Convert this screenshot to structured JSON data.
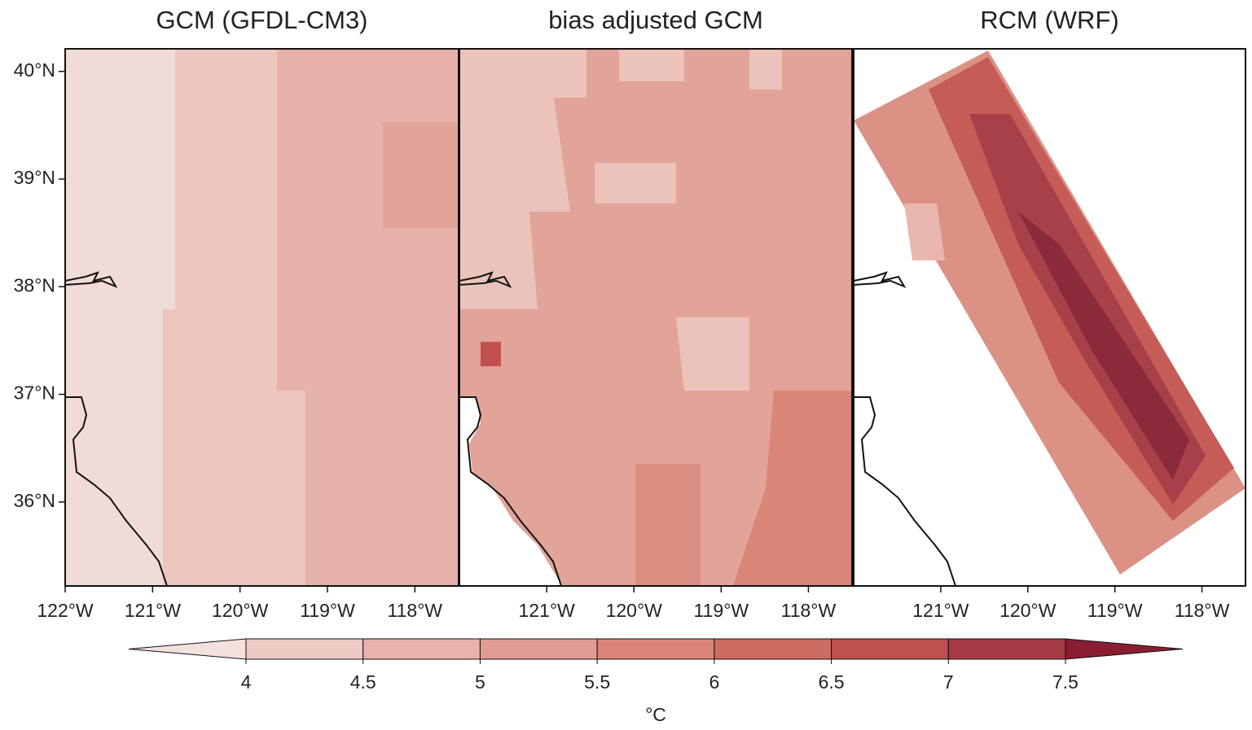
{
  "panels": [
    {
      "title": "GCM (GFDL-CM3)",
      "xlim": [
        -122.0,
        -117.5
      ],
      "ylim": [
        35.22,
        40.21
      ],
      "xticks": [
        {
          "value": -122,
          "label": "122°W"
        },
        {
          "value": -121,
          "label": "121°W"
        },
        {
          "value": -120,
          "label": "120°W"
        },
        {
          "value": -119,
          "label": "119°W"
        },
        {
          "value": -118,
          "label": "118°W"
        }
      ],
      "yticks": [
        {
          "value": 36,
          "label": "36°N"
        },
        {
          "value": 37,
          "label": "37°N"
        },
        {
          "value": 38,
          "label": "38°N"
        },
        {
          "value": 39,
          "label": "39°N"
        },
        {
          "value": 40,
          "label": "40°N"
        }
      ]
    },
    {
      "title": "bias adjusted GCM",
      "xlim": [
        -122.0,
        -117.5
      ],
      "ylim": [
        35.22,
        40.21
      ],
      "xticks": [
        {
          "value": -121,
          "label": "121°W"
        },
        {
          "value": -120,
          "label": "120°W"
        },
        {
          "value": -119,
          "label": "119°W"
        },
        {
          "value": -118,
          "label": "118°W"
        }
      ]
    },
    {
      "title": "RCM (WRF)",
      "xlim": [
        -122.0,
        -117.5
      ],
      "ylim": [
        35.22,
        40.21
      ],
      "xticks": [
        {
          "value": -121,
          "label": "121°W"
        },
        {
          "value": -120,
          "label": "120°W"
        },
        {
          "value": -119,
          "label": "119°W"
        },
        {
          "value": -118,
          "label": "118°W"
        }
      ]
    }
  ],
  "colorbar": {
    "ticks": [
      4,
      4.5,
      5,
      5.5,
      6,
      6.5,
      7,
      7.5
    ],
    "colors": [
      "#f3e1de",
      "#edcac4",
      "#e7b3ab",
      "#e09c92",
      "#d98477",
      "#cd6c61",
      "#bc5150",
      "#a53b45",
      "#891e33"
    ],
    "label": "°C"
  }
}
